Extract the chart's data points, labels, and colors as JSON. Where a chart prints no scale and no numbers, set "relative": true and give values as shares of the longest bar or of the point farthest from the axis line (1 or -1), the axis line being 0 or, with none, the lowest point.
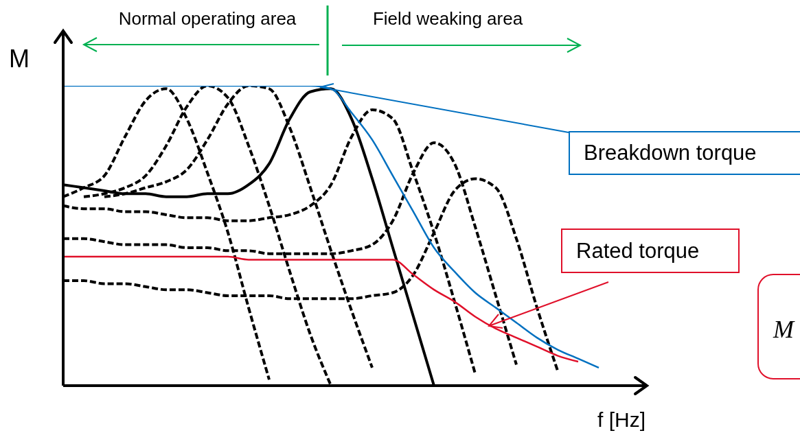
{
  "chart_data": {
    "type": "line",
    "relative": true,
    "ylabel": "M",
    "xlabel": "f [Hz]",
    "annotations": [
      "Normal operating area",
      "Field weaking area",
      "M"
    ],
    "categories": [
      null,
      null,
      null,
      null,
      null,
      null,
      null,
      null,
      null,
      null,
      null,
      null,
      null,
      null,
      null,
      null,
      null,
      null,
      null,
      null,
      null,
      null,
      null,
      null,
      null,
      null,
      null,
      null,
      null
    ],
    "series": [
      {
        "color": "#000000",
        "line_style": "dashed",
        "values": [
          0.63,
          0.66,
          0.7,
          0.83,
          0.95,
          0.99,
          0.89,
          0.71,
          0.51,
          0.26,
          0.02,
          null,
          null,
          null,
          null,
          null,
          null,
          null,
          null,
          null,
          null,
          null,
          null,
          null,
          null,
          null,
          null,
          null,
          null
        ]
      },
      {
        "color": "#000000",
        "line_style": "dashed",
        "values": [
          null,
          0.63,
          0.64,
          0.66,
          0.7,
          0.8,
          0.93,
          1.0,
          0.96,
          0.8,
          0.6,
          0.38,
          0.17,
          0.0,
          null,
          null,
          null,
          null,
          null,
          null,
          null,
          null,
          null,
          null,
          null,
          null,
          null,
          null,
          null
        ]
      },
      {
        "color": "#000000",
        "line_style": "dashed",
        "values": [
          null,
          null,
          0.63,
          0.64,
          0.66,
          0.68,
          0.72,
          0.82,
          0.94,
          1.0,
          0.99,
          0.86,
          0.66,
          0.45,
          0.25,
          0.06,
          null,
          null,
          null,
          null,
          null,
          null,
          null,
          null,
          null,
          null,
          null,
          null,
          null
        ]
      },
      {
        "color": "#000000",
        "line_style": "solid",
        "values": [
          0.67,
          0.66,
          0.65,
          0.64,
          0.64,
          0.63,
          0.63,
          0.64,
          0.64,
          0.67,
          0.74,
          0.89,
          0.98,
          0.99,
          0.89,
          0.69,
          0.46,
          0.23,
          0.0,
          null,
          null,
          null,
          null,
          null,
          null,
          null,
          null,
          null,
          null
        ]
      },
      {
        "color": "#000000",
        "line_style": "dashed",
        "values": [
          0.6,
          0.59,
          0.59,
          0.58,
          0.58,
          0.57,
          0.56,
          0.56,
          0.55,
          0.55,
          0.56,
          0.57,
          0.6,
          0.67,
          0.83,
          0.92,
          0.89,
          0.71,
          0.51,
          0.28,
          0.04,
          null,
          null,
          null,
          null,
          null,
          null,
          null,
          null
        ]
      },
      {
        "color": "#000000",
        "line_style": "dashed",
        "values": [
          0.49,
          0.49,
          0.48,
          0.47,
          0.47,
          0.47,
          0.46,
          0.46,
          0.45,
          0.45,
          0.44,
          0.44,
          0.44,
          0.44,
          0.45,
          0.47,
          0.55,
          0.71,
          0.81,
          0.74,
          0.53,
          0.3,
          0.07,
          null,
          null,
          null,
          null,
          null,
          null
        ]
      },
      {
        "color": "#000000",
        "line_style": "dashed",
        "values": [
          0.35,
          0.35,
          0.34,
          0.34,
          0.33,
          0.32,
          0.32,
          0.31,
          0.3,
          0.3,
          0.3,
          0.29,
          0.29,
          0.29,
          0.29,
          0.3,
          0.31,
          0.37,
          0.51,
          0.65,
          0.69,
          0.66,
          0.49,
          0.26,
          0.05,
          null,
          null,
          null,
          null
        ]
      },
      {
        "name": "Breakdown torque",
        "color": "#0070c0",
        "line_style": "solid",
        "values": [
          1.0,
          1.0,
          1.0,
          1.0,
          1.0,
          1.0,
          1.0,
          1.0,
          1.0,
          1.0,
          1.0,
          1.0,
          1.0,
          0.99,
          0.91,
          0.82,
          0.7,
          0.58,
          0.46,
          0.38,
          0.31,
          0.26,
          0.21,
          0.16,
          0.12,
          0.09,
          0.06,
          null,
          null
        ]
      },
      {
        "name": "Rated torque",
        "color": "#e0102a",
        "line_style": "solid",
        "values": [
          0.43,
          0.43,
          0.43,
          0.43,
          0.43,
          0.43,
          0.43,
          0.43,
          0.43,
          0.42,
          0.42,
          0.42,
          0.42,
          0.42,
          0.42,
          0.42,
          0.42,
          0.37,
          0.32,
          0.28,
          0.23,
          0.19,
          0.16,
          0.13,
          0.1,
          0.08,
          null,
          null,
          null
        ]
      }
    ]
  }
}
